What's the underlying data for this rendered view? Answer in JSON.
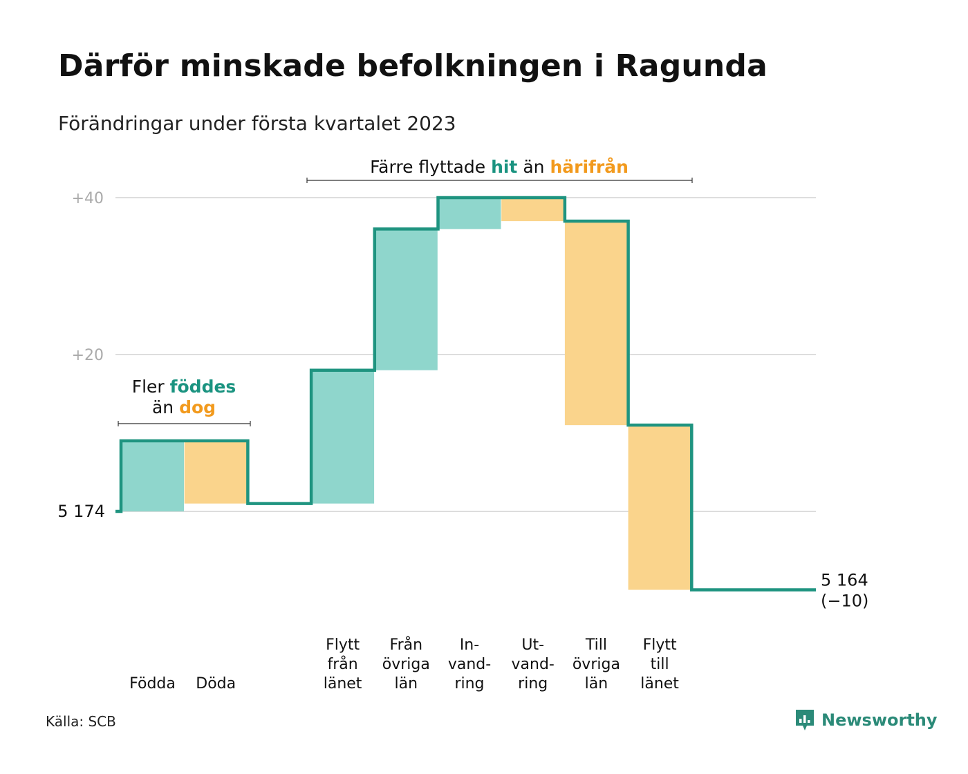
{
  "title": "Därför minskade befolkningen i Ragunda",
  "subtitle": "Förändringar under första kvartalet 2023",
  "source": "Källa: SCB",
  "logo_text": "Newsworthy",
  "colors": {
    "increase_fill": "#8fd6cc",
    "decrease_fill": "#fad48c",
    "step_line": "#1f9480",
    "teal_text": "#1a9380",
    "orange_text": "#f29a1d",
    "grid": "#dddddd",
    "tick_text": "#aaaaaa"
  },
  "chart_data": {
    "type": "waterfall",
    "start_label": "5 174",
    "end_label": "5 164",
    "end_change_label": "(−10)",
    "y_tick_labels": [
      "+20",
      "+40"
    ],
    "y_ticks": [
      20,
      40
    ],
    "ylim": [
      -10,
      40
    ],
    "categories": [
      {
        "label": [
          "Födda"
        ],
        "value": 9
      },
      {
        "label": [
          "Döda"
        ],
        "value": -8
      },
      {
        "label": [],
        "value": 0
      },
      {
        "label": [
          "Flytt",
          "från",
          "länet"
        ],
        "value": 17
      },
      {
        "label": [
          "Från",
          "övriga",
          "län"
        ],
        "value": 18
      },
      {
        "label": [
          "In-",
          "vand-",
          "ring"
        ],
        "value": 4
      },
      {
        "label": [
          "Ut-",
          "vand-",
          "ring"
        ],
        "value": -3
      },
      {
        "label": [
          "Till",
          "övriga",
          "län"
        ],
        "value": -26
      },
      {
        "label": [
          "Flytt",
          "till",
          "länet"
        ],
        "value": -21
      }
    ],
    "annotations": [
      {
        "prefix": "Fler ",
        "teal": "föddes",
        "line2_prefix": "än ",
        "orange": "dog"
      },
      {
        "prefix": "Färre flyttade ",
        "teal": "hit",
        "middle": " än ",
        "orange": "härifrån"
      }
    ]
  }
}
